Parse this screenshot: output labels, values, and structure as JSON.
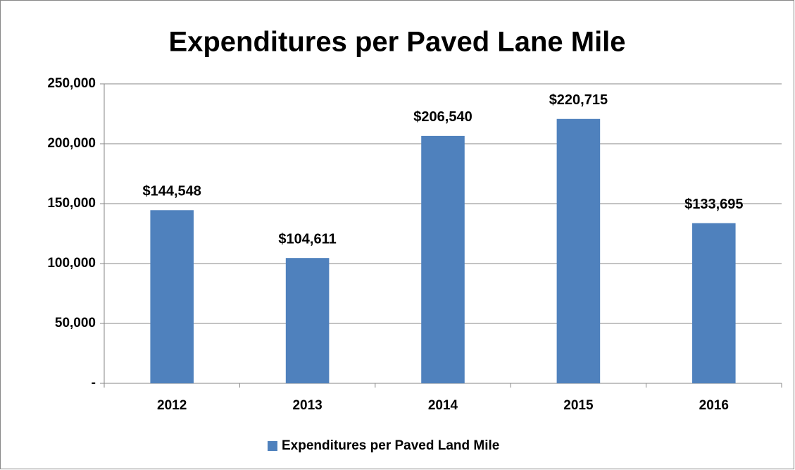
{
  "chart_data": {
    "type": "bar",
    "title": "Expenditures per Paved Lane Mile",
    "categories": [
      "2012",
      "2013",
      "2014",
      "2015",
      "2016"
    ],
    "series": [
      {
        "name": "Expenditures per Paved Land Mile",
        "color": "#4f81bd",
        "values": [
          144548,
          104611,
          206540,
          220715,
          133695
        ],
        "value_labels": [
          "$144,548",
          "$104,611",
          "$206,540",
          "$220,715",
          "$133,695"
        ]
      }
    ],
    "ylim": [
      0,
      250000
    ],
    "yticks": [
      {
        "value": 0,
        "label": "-"
      },
      {
        "value": 50000,
        "label": "50,000"
      },
      {
        "value": 100000,
        "label": "100,000"
      },
      {
        "value": 150000,
        "label": "150,000"
      },
      {
        "value": 200000,
        "label": "200,000"
      },
      {
        "value": 250000,
        "label": "250,000"
      }
    ],
    "grid": true,
    "legend": "bottom"
  }
}
